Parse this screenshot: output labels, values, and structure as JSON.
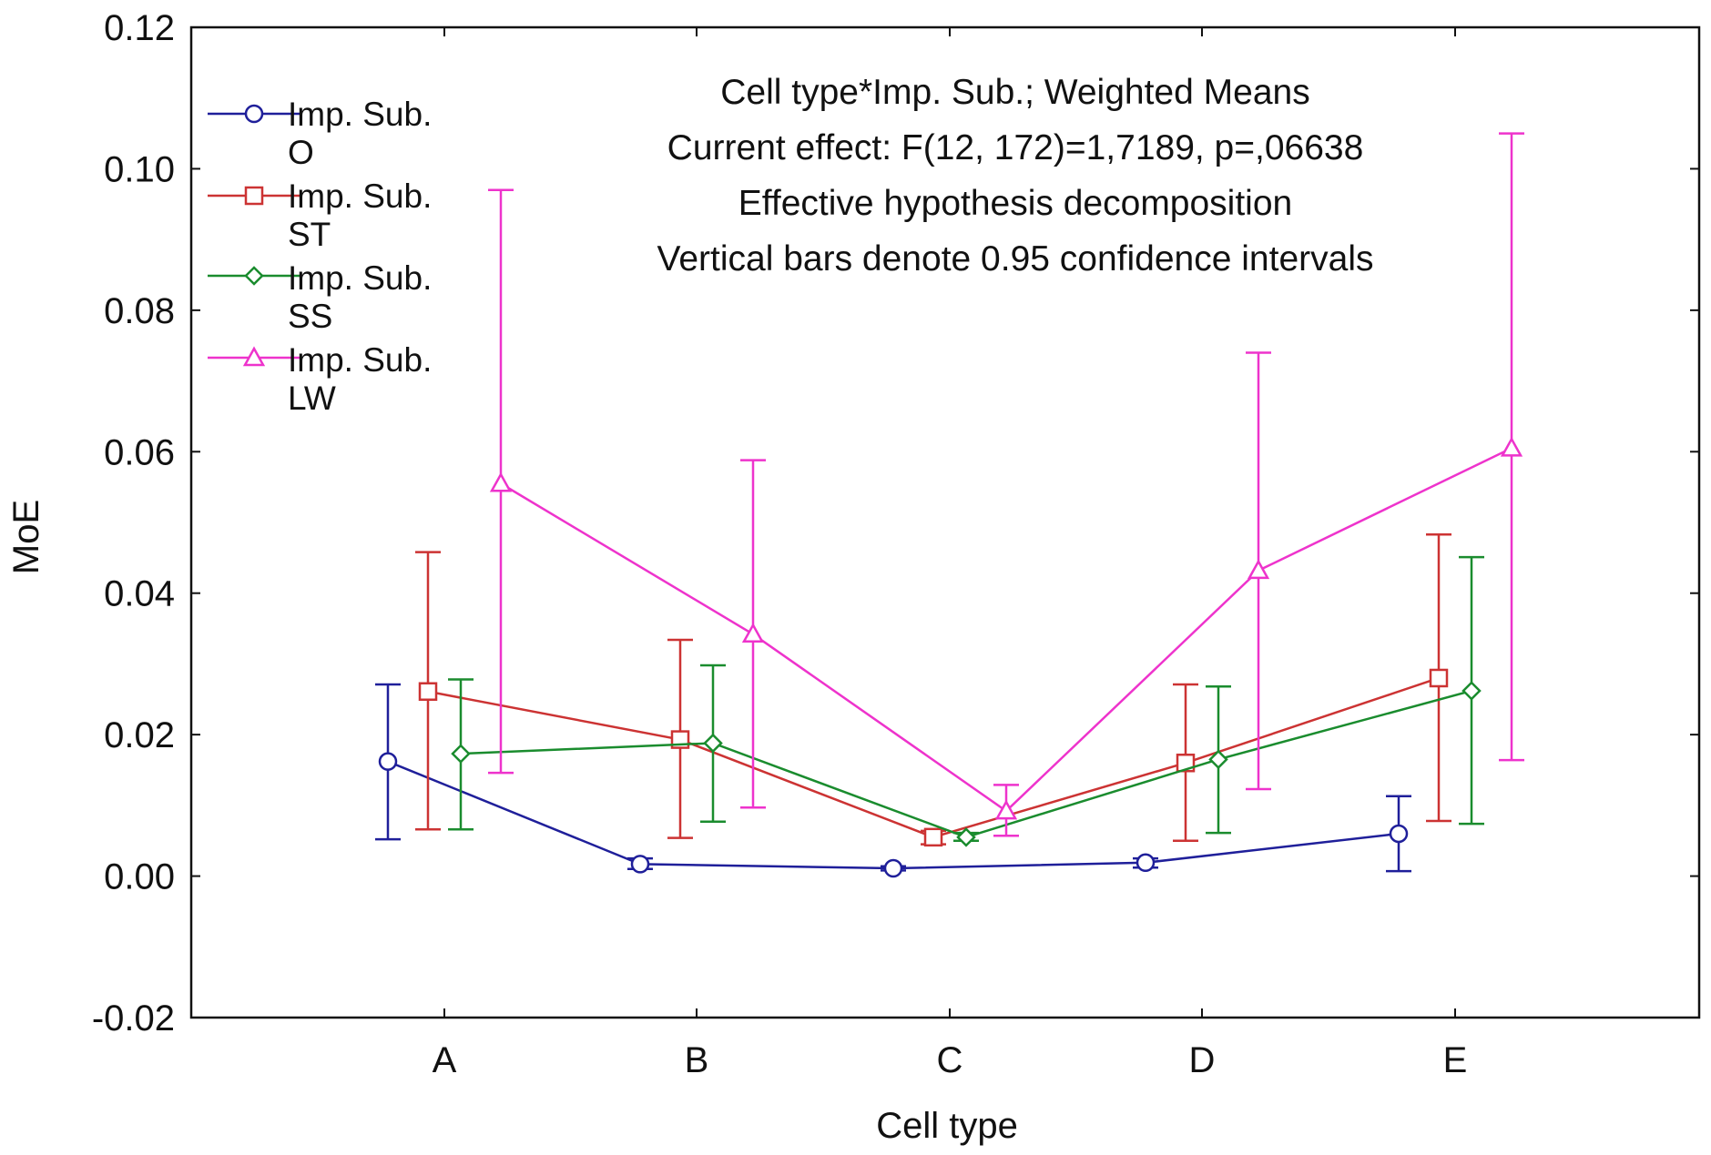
{
  "chart_data": {
    "type": "line",
    "title_lines": [
      "Cell type*Imp. Sub.; Weighted Means",
      "Current effect: F(12, 172)=1,7189, p=,06638",
      "Effective hypothesis decomposition",
      "Vertical bars denote 0.95 confidence intervals"
    ],
    "xlabel": "Cell type",
    "ylabel": "MoE",
    "categories": [
      "A",
      "B",
      "C",
      "D",
      "E"
    ],
    "ylim": [
      -0.02,
      0.12
    ],
    "yticks": [
      -0.02,
      0.0,
      0.02,
      0.04,
      0.06,
      0.08,
      0.1,
      0.12
    ],
    "ytick_labels": [
      "-0.02",
      "0.00",
      "0.02",
      "0.04",
      "0.06",
      "0.08",
      "0.10",
      "0.12"
    ],
    "series": [
      {
        "name": "Imp. Sub. O",
        "legend_lines": [
          "Imp. Sub.",
          "O"
        ],
        "color": "#1f1f9a",
        "marker": "circle",
        "values": [
          0.0162,
          0.0017,
          0.0011,
          0.0019,
          0.006
        ],
        "ci_low": [
          0.0052,
          0.001,
          0.0008,
          0.0012,
          0.0007
        ],
        "ci_high": [
          0.0271,
          0.0025,
          0.0014,
          0.0025,
          0.0113
        ]
      },
      {
        "name": "Imp. Sub. ST",
        "legend_lines": [
          "Imp. Sub.",
          "ST"
        ],
        "color": "#cc3333",
        "marker": "square",
        "values": [
          0.0261,
          0.0193,
          0.0055,
          0.016,
          0.028
        ],
        "ci_low": [
          0.0066,
          0.0054,
          0.0045,
          0.005,
          0.0078
        ],
        "ci_high": [
          0.0458,
          0.0334,
          0.0064,
          0.0271,
          0.0483
        ]
      },
      {
        "name": "Imp. Sub. SS",
        "legend_lines": [
          "Imp. Sub.",
          "SS"
        ],
        "color": "#1a8c2e",
        "marker": "diamond",
        "values": [
          0.0173,
          0.0188,
          0.0055,
          0.0165,
          0.0262
        ],
        "ci_low": [
          0.0066,
          0.0077,
          0.005,
          0.0061,
          0.0074
        ],
        "ci_high": [
          0.0278,
          0.0298,
          0.0061,
          0.0268,
          0.0451
        ]
      },
      {
        "name": "Imp. Sub. LW",
        "legend_lines": [
          "Imp. Sub.",
          "LW"
        ],
        "color": "#ee33cc",
        "marker": "triangle",
        "values": [
          0.0555,
          0.0342,
          0.0092,
          0.0432,
          0.0605
        ],
        "ci_low": [
          0.0146,
          0.0097,
          0.0057,
          0.0123,
          0.0164
        ],
        "ci_high": [
          0.097,
          0.0588,
          0.0129,
          0.074,
          0.105
        ]
      }
    ],
    "legend_position": "top-left",
    "grid": false
  }
}
